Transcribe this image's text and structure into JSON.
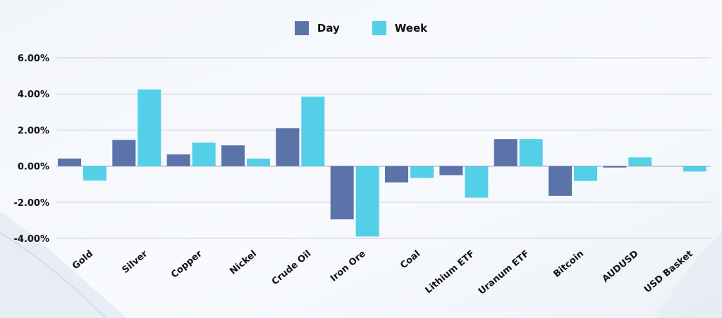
{
  "chart_data": {
    "type": "bar",
    "categories": [
      "Gold",
      "Silver",
      "Copper",
      "Nickel",
      "Crude Oil",
      "Iron Ore",
      "Coal",
      "Lithium ETF",
      "Uranum ETF",
      "Bitcoin",
      "AUDUSD",
      "USD Basket"
    ],
    "series": [
      {
        "name": "Day",
        "color": "#5b73a8",
        "values": [
          0.42,
          1.45,
          0.65,
          1.15,
          2.1,
          -2.95,
          -0.9,
          -0.5,
          1.5,
          -1.65,
          -0.08,
          0.0
        ]
      },
      {
        "name": "Week",
        "color": "#53d0e8",
        "values": [
          -0.8,
          4.25,
          1.3,
          0.42,
          3.85,
          -3.9,
          -0.65,
          -1.75,
          1.5,
          -0.82,
          0.48,
          -0.3
        ]
      }
    ],
    "yticks": [
      "6.00%",
      "4.00%",
      "2.00%",
      "0.00%",
      "-2.00%",
      "-4.00%"
    ],
    "ylim": [
      -4,
      6
    ],
    "grid": true,
    "legend_position": "top-center",
    "title": "",
    "xlabel": "",
    "ylabel": ""
  }
}
